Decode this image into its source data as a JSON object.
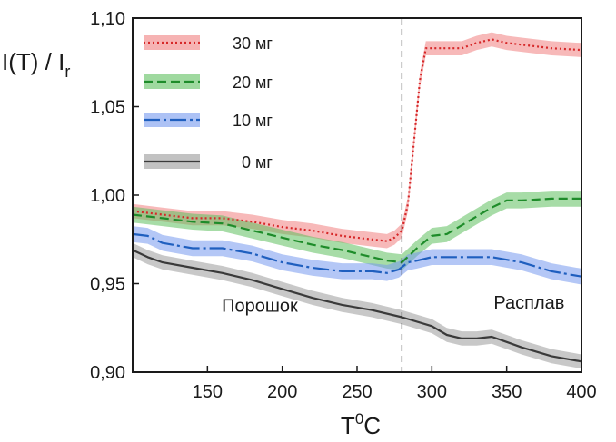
{
  "chart_data": {
    "type": "line",
    "ylabel": "I(T) / I",
    "ylabel_sub": "r",
    "xlabel_base": "T",
    "xlabel_sup": "0",
    "xlabel_unit": "C",
    "xlim": [
      100,
      400
    ],
    "ylim": [
      0.9,
      1.1
    ],
    "x_ticks": [
      150,
      200,
      250,
      300,
      350,
      400
    ],
    "x_tick_labels": [
      "150",
      "200",
      "250",
      "300",
      "350",
      "400"
    ],
    "y_ticks": [
      0.9,
      0.95,
      1.0,
      1.05,
      1.1
    ],
    "y_tick_labels": [
      "0,90",
      "0,95",
      "1,00",
      "1,05",
      "1,10"
    ],
    "grid": false,
    "legend_position": "top-left",
    "vline_x": 280,
    "annotations": [
      {
        "text": "Порошок",
        "x": 185,
        "y": 0.934
      },
      {
        "text": "Расплав",
        "x": 365,
        "y": 0.936
      }
    ],
    "series": [
      {
        "name": "30 мг",
        "color": "#d62728",
        "band_color": "#f08080",
        "dash": "2,3",
        "band": 0.004,
        "x": [
          100,
          120,
          140,
          160,
          180,
          200,
          220,
          240,
          260,
          270,
          275,
          280,
          284,
          288,
          292,
          296,
          300,
          310,
          320,
          330,
          340,
          350,
          360,
          380,
          400
        ],
        "y": [
          0.991,
          0.989,
          0.987,
          0.987,
          0.985,
          0.982,
          0.98,
          0.977,
          0.975,
          0.974,
          0.976,
          0.98,
          0.995,
          1.03,
          1.065,
          1.083,
          1.083,
          1.083,
          1.083,
          1.086,
          1.088,
          1.086,
          1.085,
          1.083,
          1.082
        ]
      },
      {
        "name": "20 мг",
        "color": "#1e8c2a",
        "band_color": "#5fbf5f",
        "dash": "10,5",
        "band": 0.0045,
        "x": [
          100,
          120,
          140,
          160,
          180,
          200,
          220,
          240,
          260,
          270,
          280,
          290,
          300,
          310,
          320,
          330,
          340,
          350,
          360,
          380,
          400
        ],
        "y": [
          0.989,
          0.987,
          0.985,
          0.984,
          0.98,
          0.976,
          0.972,
          0.969,
          0.965,
          0.963,
          0.962,
          0.97,
          0.977,
          0.978,
          0.983,
          0.988,
          0.993,
          0.997,
          0.997,
          0.998,
          0.998
        ]
      },
      {
        "name": "10 мг",
        "color": "#1f5fbf",
        "band_color": "#7799ee",
        "dash": "18,4,3,4",
        "band": 0.0045,
        "x": [
          100,
          110,
          120,
          140,
          160,
          180,
          200,
          220,
          240,
          260,
          270,
          278,
          284,
          290,
          300,
          320,
          340,
          360,
          380,
          400
        ],
        "y": [
          0.978,
          0.977,
          0.973,
          0.97,
          0.97,
          0.967,
          0.962,
          0.959,
          0.957,
          0.957,
          0.956,
          0.958,
          0.962,
          0.963,
          0.965,
          0.965,
          0.965,
          0.962,
          0.957,
          0.954
        ]
      },
      {
        "name": "0 мг",
        "color": "#3a3a3a",
        "band_color": "#9a9a9a",
        "dash": "",
        "band": 0.004,
        "x": [
          100,
          110,
          120,
          140,
          160,
          180,
          200,
          220,
          240,
          260,
          280,
          300,
          310,
          320,
          330,
          340,
          350,
          360,
          380,
          400
        ],
        "y": [
          0.969,
          0.965,
          0.962,
          0.959,
          0.956,
          0.952,
          0.947,
          0.942,
          0.938,
          0.935,
          0.931,
          0.926,
          0.921,
          0.919,
          0.919,
          0.92,
          0.917,
          0.914,
          0.909,
          0.906
        ]
      }
    ]
  }
}
